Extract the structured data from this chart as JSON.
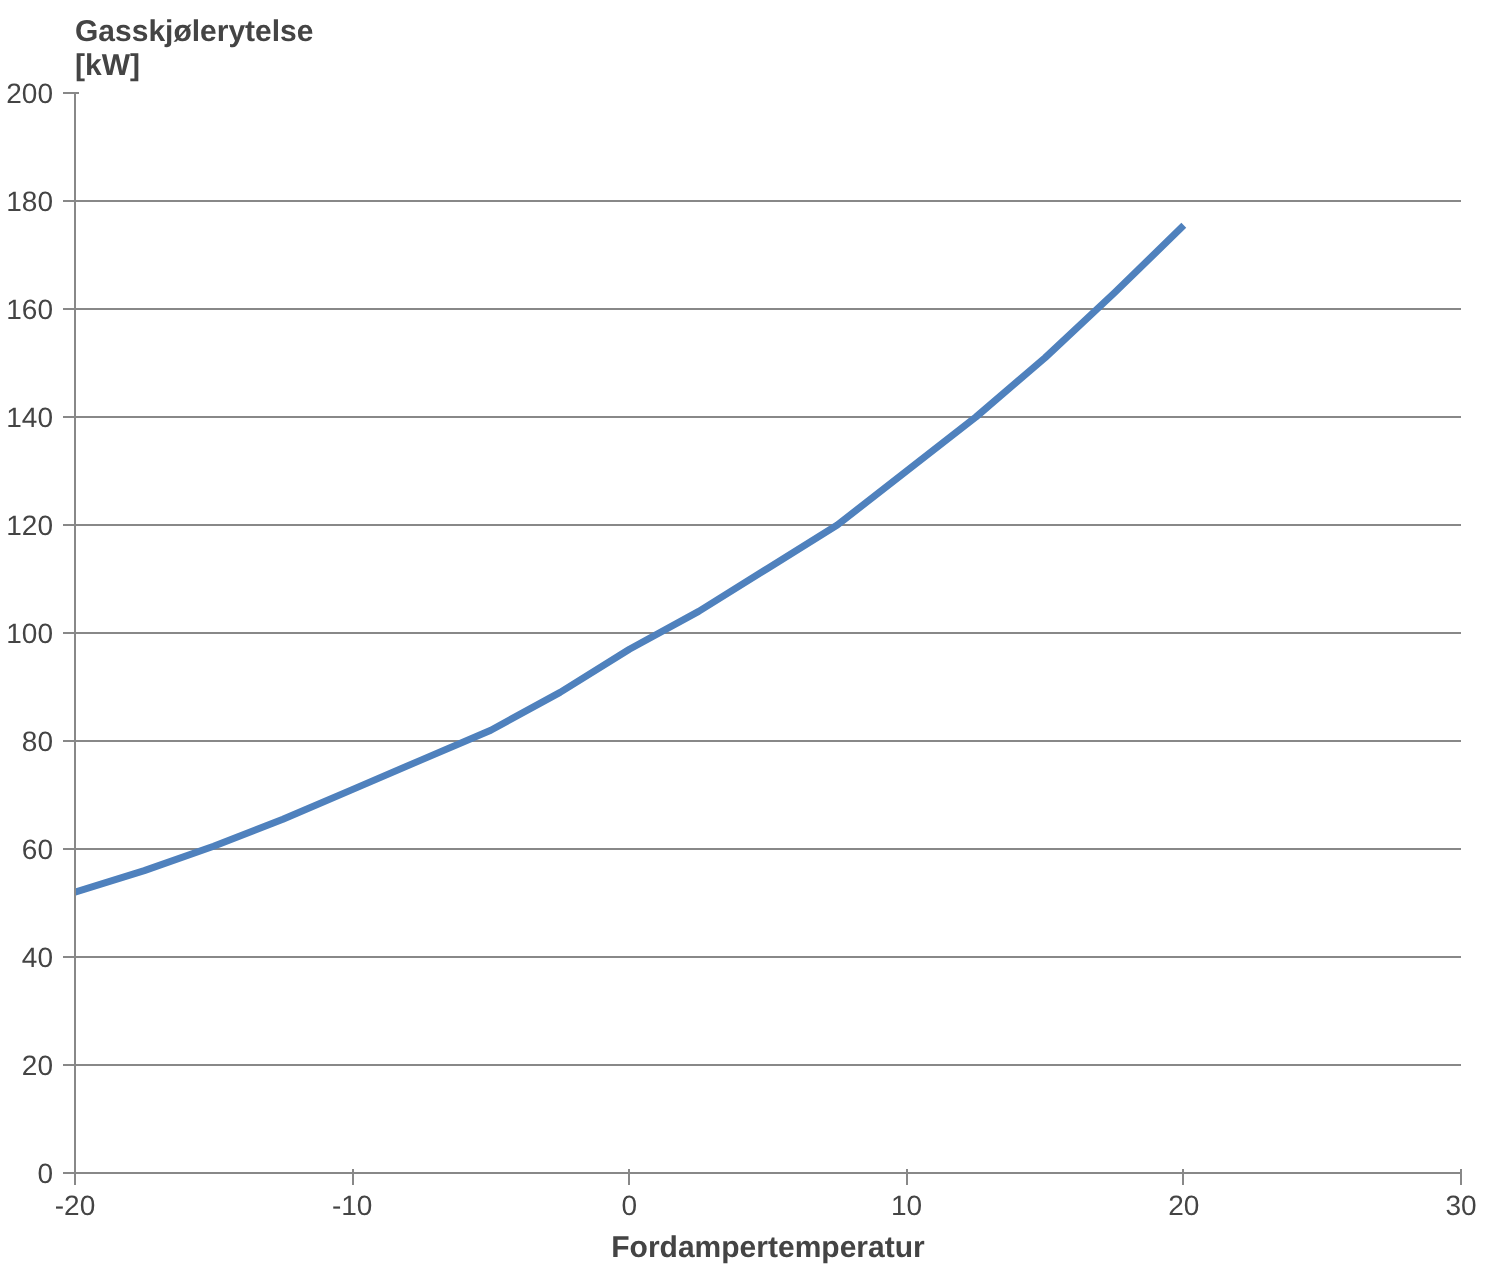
{
  "chart_data": {
    "type": "line",
    "ylabel": "Gasskjølerytelse\n[kW]",
    "xlabel": "Fordampertemperatur",
    "x": [
      -20,
      -17.5,
      -15,
      -12.5,
      -10,
      -7.5,
      -5,
      -2.5,
      0,
      2.5,
      5,
      7.5,
      10,
      12.5,
      15,
      17.5,
      20
    ],
    "series": [
      {
        "color": "#4f81bd",
        "values": [
          52,
          56,
          60.5,
          65.5,
          71,
          76.5,
          82,
          89,
          97,
          104,
          112,
          120,
          130,
          140,
          151,
          163,
          175.5
        ]
      }
    ],
    "xlim": [
      -20,
      30
    ],
    "xticks": [
      -20,
      -10,
      0,
      10,
      20,
      30
    ],
    "ylim": [
      0,
      200
    ],
    "yticks": [
      0,
      20,
      40,
      60,
      80,
      100,
      120,
      140,
      160,
      180,
      200
    ],
    "grid": "y",
    "marker": "none",
    "line_style": "solid"
  }
}
